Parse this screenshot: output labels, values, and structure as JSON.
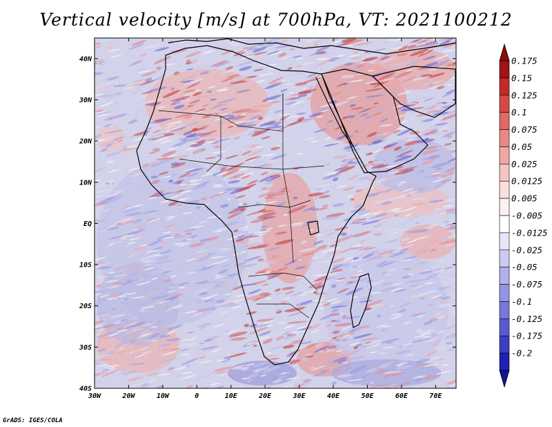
{
  "title": "Vertical velocity [m/s] at 700hPa, VT: 2021100212",
  "credit": "GrADS: IGES/COLA",
  "map": {
    "variable": "Vertical velocity",
    "units": "m/s",
    "level": "700hPa",
    "valid_time": "2021100212",
    "lon_range": [
      -30,
      76
    ],
    "lat_range": [
      -40,
      45
    ],
    "lon_ticks": [
      {
        "lon": -30,
        "label": "30W"
      },
      {
        "lon": -20,
        "label": "20W"
      },
      {
        "lon": -10,
        "label": "10W"
      },
      {
        "lon": 0,
        "label": "0"
      },
      {
        "lon": 10,
        "label": "10E"
      },
      {
        "lon": 20,
        "label": "20E"
      },
      {
        "lon": 30,
        "label": "30E"
      },
      {
        "lon": 40,
        "label": "40E"
      },
      {
        "lon": 50,
        "label": "50E"
      },
      {
        "lon": 60,
        "label": "60E"
      },
      {
        "lon": 70,
        "label": "70E"
      }
    ],
    "lat_ticks": [
      {
        "lat": 40,
        "label": "40N"
      },
      {
        "lat": 30,
        "label": "30N"
      },
      {
        "lat": 20,
        "label": "20N"
      },
      {
        "lat": 10,
        "label": "10N"
      },
      {
        "lat": 0,
        "label": "EQ"
      },
      {
        "lat": -10,
        "label": "10S"
      },
      {
        "lat": -20,
        "label": "20S"
      },
      {
        "lat": -30,
        "label": "30S"
      },
      {
        "lat": -40,
        "label": "40S"
      }
    ]
  },
  "colorbar": {
    "levels": [
      {
        "label": "0.175",
        "color": "#a01414"
      },
      {
        "label": "0.15",
        "color": "#c22a2a"
      },
      {
        "label": "0.125",
        "color": "#d64848"
      },
      {
        "label": "0.1",
        "color": "#e26767"
      },
      {
        "label": "0.075",
        "color": "#ec8787"
      },
      {
        "label": "0.05",
        "color": "#f2a6a6"
      },
      {
        "label": "0.025",
        "color": "#f7c4c4"
      },
      {
        "label": "0.0125",
        "color": "#fbdede"
      },
      {
        "label": "0.005",
        "color": "#fdf0f0"
      },
      {
        "label": "-0.005",
        "color": "#ffffff"
      },
      {
        "label": "-0.0125",
        "color": "#e6e6f8"
      },
      {
        "label": "-0.025",
        "color": "#ccccf2"
      },
      {
        "label": "-0.05",
        "color": "#b0b0ec"
      },
      {
        "label": "-0.075",
        "color": "#9494e4"
      },
      {
        "label": "-0.1",
        "color": "#7777da"
      },
      {
        "label": "-0.125",
        "color": "#5a5ad0"
      },
      {
        "label": "-0.175",
        "color": "#3c3cc4"
      },
      {
        "label": "-0.2",
        "color": "#2020b0"
      }
    ],
    "top_color": "#8c0a0a",
    "bottom_color": "#12129a"
  }
}
